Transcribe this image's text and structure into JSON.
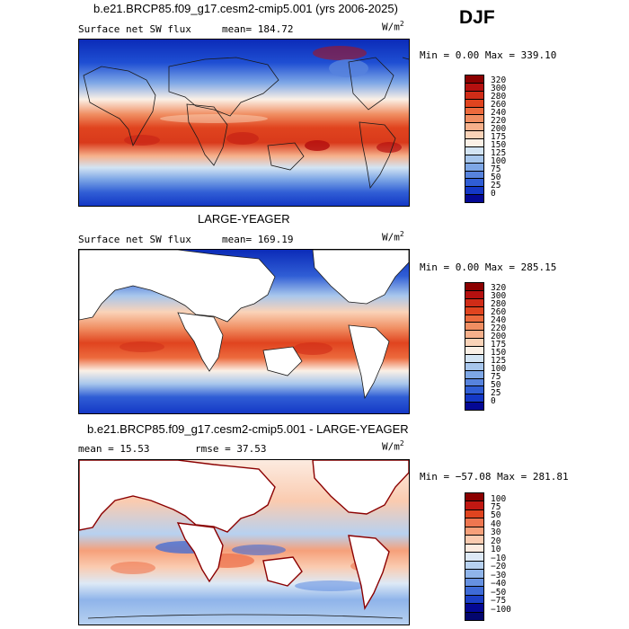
{
  "season_label": "DJF",
  "colors": {
    "full": [
      "#8b0000",
      "#b5100f",
      "#d02c17",
      "#e0441f",
      "#ec6a3d",
      "#f08e62",
      "#f6b08b",
      "#fad3b8",
      "#fbf0e6",
      "#d3e4f3",
      "#a7c6ec",
      "#7ea7e6",
      "#5783dd",
      "#305ed5",
      "#1438c6",
      "#040894"
    ],
    "diff": [
      "#8b0000",
      "#c01812",
      "#e0441f",
      "#ee7650",
      "#f6a07a",
      "#facbb0",
      "#fcebe0",
      "#dde9f6",
      "#b7d1f0",
      "#8fb4ea",
      "#6691e1",
      "#3e6bd7",
      "#1b3fc6",
      "#040894"
    ]
  },
  "chart_data": [
    {
      "type": "heatmap",
      "panel": "model",
      "title": "b.e21.BRCP85.f09_g17.cesm2-cmip5.001 (yrs 2006-2025)",
      "left_label": "Surface net SW flux",
      "center_label": "mean= 184.72",
      "units": "W/m",
      "units_exp": "2",
      "stats": "Min =    0.00 Max = 339.10",
      "min": 0.0,
      "max": 339.1,
      "mean": 184.72,
      "colorbar_levels": [
        "320",
        "300",
        "280",
        "260",
        "240",
        "220",
        "200",
        "175",
        "150",
        "125",
        "100",
        "75",
        "50",
        "25",
        "0"
      ]
    },
    {
      "type": "heatmap",
      "panel": "observations",
      "title": "LARGE-YEAGER",
      "left_label": "Surface net SW flux",
      "center_label": "mean= 169.19",
      "units": "W/m",
      "units_exp": "2",
      "stats": "Min =    0.00 Max = 285.15",
      "min": 0.0,
      "max": 285.15,
      "mean": 169.19,
      "colorbar_levels": [
        "320",
        "300",
        "280",
        "260",
        "240",
        "220",
        "200",
        "175",
        "150",
        "125",
        "100",
        "75",
        "50",
        "25",
        "0"
      ]
    },
    {
      "type": "heatmap",
      "panel": "difference",
      "title": "b.e21.BRCP85.f09_g17.cesm2-cmip5.001 - LARGE-YEAGER",
      "left_label": "mean =   15.53",
      "center_label": "rmse =   37.53",
      "units": "W/m",
      "units_exp": "2",
      "stats": "Min = −57.08 Max = 281.81",
      "min": -57.08,
      "max": 281.81,
      "mean": 15.53,
      "rmse": 37.53,
      "colorbar_levels": [
        "100",
        "75",
        "50",
        "40",
        "30",
        "20",
        "10",
        "−10",
        "−20",
        "−30",
        "−40",
        "−50",
        "−75",
        "−100"
      ]
    }
  ]
}
